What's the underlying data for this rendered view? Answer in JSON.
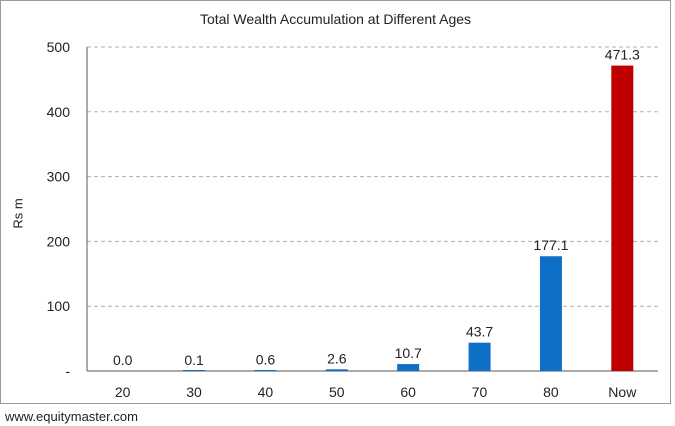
{
  "chart_data": {
    "type": "bar",
    "title": "Total Wealth Accumulation at Different Ages",
    "xlabel": "",
    "ylabel": "Rs m",
    "categories": [
      "20",
      "30",
      "40",
      "50",
      "60",
      "70",
      "80",
      "Now"
    ],
    "values": [
      0.0,
      0.1,
      0.6,
      2.6,
      10.7,
      43.7,
      177.1,
      471.3
    ],
    "data_labels": [
      "0.0",
      "0.1",
      "0.6",
      "2.6",
      "10.7",
      "43.7",
      "177.1",
      "471.3"
    ],
    "ylim": [
      0,
      500
    ],
    "yticks": [
      0,
      100,
      200,
      300,
      400,
      500
    ],
    "ytick_labels": [
      "-",
      "100",
      "200",
      "300",
      "400",
      "500"
    ],
    "grid": true,
    "colors": {
      "default_bar": "#0f6fc6",
      "highlight_bar": "#c00000",
      "grid": "#b0b0b0",
      "axis": "#555555"
    },
    "highlight_category": "Now"
  },
  "source": "www.equitymaster.com"
}
